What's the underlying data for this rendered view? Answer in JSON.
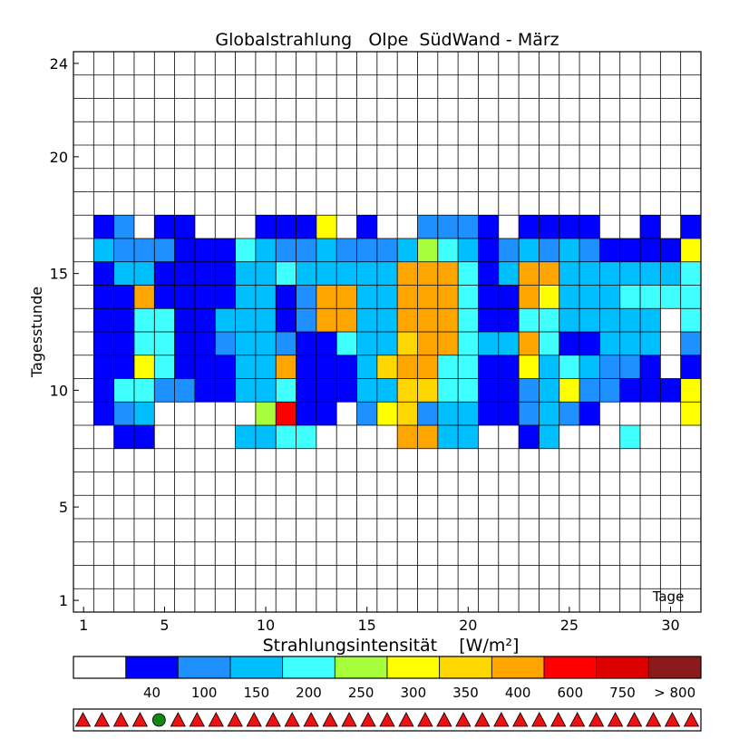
{
  "chart_data": {
    "type": "heatmap",
    "title": "Globalstrahlung   Olpe  SüdWand - März",
    "xlabel": "Tage",
    "ylabel": "Tagesstunde",
    "x_ticks": [
      1,
      5,
      10,
      15,
      20,
      25,
      30
    ],
    "y_ticks": [
      1,
      5,
      10,
      15,
      20,
      24
    ],
    "xlim": [
      1,
      31
    ],
    "ylim": [
      1,
      24
    ],
    "days": 31,
    "hours": 24,
    "cell_bins_by_hour": {
      "8": "00110000334400008833001300040000",
      "9": "01230000059110267233112321000061",
      "10": "01442211334111337744112362211161",
      "11": "01164111338111378844116343221011",
      "12": "01144112332114337884338411333021",
      "13": "01144113331288338884114433333043",
      "14": "01181111331288338884118633344443",
      "15": "01331111334333338884138833333343",
      "16": "03222111432232223543123232111161",
      "17": "01201100011160100222101111001012",
      "18": "00000000000000000000000000000001"
    },
    "colorbar": {
      "title": "Strahlungsintensität    [W/m²]",
      "labels": [
        "40",
        "100",
        "150",
        "200",
        "250",
        "300",
        "350",
        "400",
        "600",
        "750",
        "> 800"
      ],
      "colors": [
        "#ffffff",
        "#0000ff",
        "#1e90ff",
        "#00bfff",
        "#40ffff",
        "#a6ff3a",
        "#ffff00",
        "#ffd700",
        "#ffa500",
        "#ff0000",
        "#dd0000",
        "#8b1a1a"
      ]
    },
    "day_markers": {
      "symbols": [
        "triangle",
        "triangle",
        "triangle",
        "triangle",
        "circle",
        "triangle",
        "triangle",
        "triangle",
        "triangle",
        "triangle",
        "triangle",
        "triangle",
        "triangle",
        "triangle",
        "triangle",
        "triangle",
        "triangle",
        "triangle",
        "triangle",
        "triangle",
        "triangle",
        "triangle",
        "triangle",
        "triangle",
        "triangle",
        "triangle",
        "triangle",
        "triangle",
        "triangle",
        "triangle",
        "triangle",
        "triangle",
        "triangle"
      ],
      "colors": {
        "triangle": "#ee1111",
        "circle": "#118811"
      }
    }
  }
}
